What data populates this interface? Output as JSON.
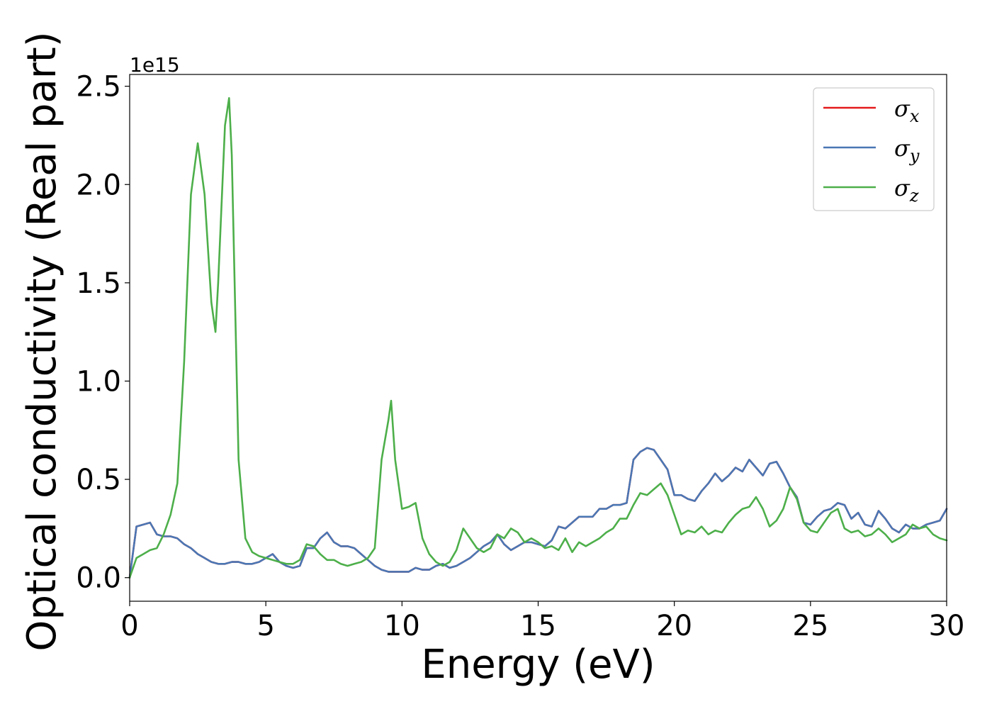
{
  "chart_data": {
    "type": "line",
    "xlabel": "Energy (eV)",
    "ylabel": "Optical conductivity (Real part)",
    "y_offset_label": "1e15",
    "xlim": [
      0,
      30
    ],
    "ylim": [
      -0.12,
      2.56
    ],
    "x_ticks": [
      0,
      5,
      10,
      15,
      20,
      25,
      30
    ],
    "x_tick_labels": [
      "0",
      "5",
      "10",
      "15",
      "20",
      "25",
      "30"
    ],
    "y_ticks": [
      0.0,
      0.5,
      1.0,
      1.5,
      2.0,
      2.5
    ],
    "y_tick_labels": [
      "0.0",
      "0.5",
      "1.0",
      "1.5",
      "2.0",
      "2.5"
    ],
    "grid": false,
    "legend_position": "upper-right",
    "series": [
      {
        "name": "σx",
        "legend_main": "σ",
        "legend_sub": "x",
        "color": "#e41a1c",
        "x": [
          0.0,
          0.25,
          0.5,
          0.75,
          1.0,
          1.25,
          1.5,
          1.75,
          2.0,
          2.25,
          2.5,
          2.75,
          3.0,
          3.25,
          3.5,
          3.75,
          4.0,
          4.25,
          4.5,
          4.75,
          5.0,
          5.25,
          5.5,
          5.75,
          6.0,
          6.25,
          6.5,
          6.75,
          7.0,
          7.25,
          7.5,
          7.75,
          8.0,
          8.25,
          8.5,
          8.75,
          9.0,
          9.25,
          9.5,
          9.75,
          10.0,
          10.25,
          10.5,
          10.75,
          11.0,
          11.25,
          11.5,
          11.75,
          12.0,
          12.25,
          12.5,
          12.75,
          13.0,
          13.25,
          13.5,
          13.75,
          14.0,
          14.25,
          14.5,
          14.75,
          15.0,
          15.25,
          15.5,
          15.75,
          16.0,
          16.25,
          16.5,
          16.75,
          17.0,
          17.25,
          17.5,
          17.75,
          18.0,
          18.25,
          18.5,
          18.75,
          19.0,
          19.25,
          19.5,
          19.75,
          20.0,
          20.25,
          20.5,
          20.75,
          21.0,
          21.25,
          21.5,
          21.75,
          22.0,
          22.25,
          22.5,
          22.75,
          23.0,
          23.25,
          23.5,
          23.75,
          24.0,
          24.25,
          24.5,
          24.75,
          25.0,
          25.25,
          25.5,
          25.75,
          26.0,
          26.25,
          26.5,
          26.75,
          27.0,
          27.25,
          27.5,
          27.75,
          28.0,
          28.25,
          28.5,
          28.75,
          29.0,
          29.25,
          29.5,
          29.75,
          30.0
        ],
        "y": [
          0.0,
          0.26,
          0.27,
          0.28,
          0.22,
          0.21,
          0.21,
          0.2,
          0.17,
          0.15,
          0.12,
          0.1,
          0.08,
          0.07,
          0.07,
          0.08,
          0.08,
          0.07,
          0.07,
          0.08,
          0.1,
          0.12,
          0.08,
          0.06,
          0.05,
          0.06,
          0.15,
          0.15,
          0.2,
          0.23,
          0.18,
          0.16,
          0.16,
          0.15,
          0.12,
          0.09,
          0.06,
          0.04,
          0.03,
          0.03,
          0.03,
          0.03,
          0.05,
          0.04,
          0.04,
          0.06,
          0.07,
          0.05,
          0.06,
          0.08,
          0.1,
          0.13,
          0.16,
          0.18,
          0.22,
          0.17,
          0.14,
          0.16,
          0.18,
          0.18,
          0.17,
          0.16,
          0.19,
          0.26,
          0.25,
          0.28,
          0.31,
          0.31,
          0.31,
          0.35,
          0.35,
          0.37,
          0.37,
          0.38,
          0.6,
          0.64,
          0.66,
          0.65,
          0.6,
          0.55,
          0.42,
          0.42,
          0.4,
          0.39,
          0.44,
          0.48,
          0.53,
          0.49,
          0.52,
          0.56,
          0.54,
          0.6,
          0.56,
          0.52,
          0.58,
          0.59,
          0.53,
          0.46,
          0.41,
          0.28,
          0.27,
          0.31,
          0.34,
          0.35,
          0.38,
          0.37,
          0.3,
          0.33,
          0.27,
          0.26,
          0.34,
          0.3,
          0.25,
          0.23,
          0.27,
          0.25,
          0.25,
          0.27,
          0.28,
          0.29,
          0.35
        ]
      },
      {
        "name": "σy",
        "legend_main": "σ",
        "legend_sub": "y",
        "color": "#4a77b4",
        "x": [
          0.0,
          0.25,
          0.5,
          0.75,
          1.0,
          1.25,
          1.5,
          1.75,
          2.0,
          2.25,
          2.5,
          2.75,
          3.0,
          3.25,
          3.5,
          3.75,
          4.0,
          4.25,
          4.5,
          4.75,
          5.0,
          5.25,
          5.5,
          5.75,
          6.0,
          6.25,
          6.5,
          6.75,
          7.0,
          7.25,
          7.5,
          7.75,
          8.0,
          8.25,
          8.5,
          8.75,
          9.0,
          9.25,
          9.5,
          9.75,
          10.0,
          10.25,
          10.5,
          10.75,
          11.0,
          11.25,
          11.5,
          11.75,
          12.0,
          12.25,
          12.5,
          12.75,
          13.0,
          13.25,
          13.5,
          13.75,
          14.0,
          14.25,
          14.5,
          14.75,
          15.0,
          15.25,
          15.5,
          15.75,
          16.0,
          16.25,
          16.5,
          16.75,
          17.0,
          17.25,
          17.5,
          17.75,
          18.0,
          18.25,
          18.5,
          18.75,
          19.0,
          19.25,
          19.5,
          19.75,
          20.0,
          20.25,
          20.5,
          20.75,
          21.0,
          21.25,
          21.5,
          21.75,
          22.0,
          22.25,
          22.5,
          22.75,
          23.0,
          23.25,
          23.5,
          23.75,
          24.0,
          24.25,
          24.5,
          24.75,
          25.0,
          25.25,
          25.5,
          25.75,
          26.0,
          26.25,
          26.5,
          26.75,
          27.0,
          27.25,
          27.5,
          27.75,
          28.0,
          28.25,
          28.5,
          28.75,
          29.0,
          29.25,
          29.5,
          29.75,
          30.0
        ],
        "y": [
          0.0,
          0.26,
          0.27,
          0.28,
          0.22,
          0.21,
          0.21,
          0.2,
          0.17,
          0.15,
          0.12,
          0.1,
          0.08,
          0.07,
          0.07,
          0.08,
          0.08,
          0.07,
          0.07,
          0.08,
          0.1,
          0.12,
          0.08,
          0.06,
          0.05,
          0.06,
          0.15,
          0.15,
          0.2,
          0.23,
          0.18,
          0.16,
          0.16,
          0.15,
          0.12,
          0.09,
          0.06,
          0.04,
          0.03,
          0.03,
          0.03,
          0.03,
          0.05,
          0.04,
          0.04,
          0.06,
          0.07,
          0.05,
          0.06,
          0.08,
          0.1,
          0.13,
          0.16,
          0.18,
          0.22,
          0.17,
          0.14,
          0.16,
          0.18,
          0.18,
          0.17,
          0.16,
          0.19,
          0.26,
          0.25,
          0.28,
          0.31,
          0.31,
          0.31,
          0.35,
          0.35,
          0.37,
          0.37,
          0.38,
          0.6,
          0.64,
          0.66,
          0.65,
          0.6,
          0.55,
          0.42,
          0.42,
          0.4,
          0.39,
          0.44,
          0.48,
          0.53,
          0.49,
          0.52,
          0.56,
          0.54,
          0.6,
          0.56,
          0.52,
          0.58,
          0.59,
          0.53,
          0.46,
          0.41,
          0.28,
          0.27,
          0.31,
          0.34,
          0.35,
          0.38,
          0.37,
          0.3,
          0.33,
          0.27,
          0.26,
          0.34,
          0.3,
          0.25,
          0.23,
          0.27,
          0.25,
          0.25,
          0.27,
          0.28,
          0.29,
          0.35
        ]
      },
      {
        "name": "σz",
        "legend_main": "σ",
        "legend_sub": "z",
        "color": "#4daf4a",
        "x": [
          0.0,
          0.25,
          0.5,
          0.75,
          1.0,
          1.25,
          1.5,
          1.75,
          2.0,
          2.25,
          2.5,
          2.75,
          3.0,
          3.15,
          3.25,
          3.5,
          3.65,
          3.75,
          4.0,
          4.25,
          4.5,
          4.75,
          5.0,
          5.25,
          5.5,
          5.75,
          6.0,
          6.25,
          6.5,
          6.75,
          7.0,
          7.25,
          7.5,
          7.75,
          8.0,
          8.25,
          8.5,
          8.75,
          9.0,
          9.25,
          9.5,
          9.6,
          9.75,
          10.0,
          10.25,
          10.5,
          10.75,
          11.0,
          11.25,
          11.5,
          11.75,
          12.0,
          12.25,
          12.5,
          12.75,
          13.0,
          13.25,
          13.5,
          13.75,
          14.0,
          14.25,
          14.5,
          14.75,
          15.0,
          15.25,
          15.5,
          15.75,
          16.0,
          16.25,
          16.5,
          16.75,
          17.0,
          17.25,
          17.5,
          17.75,
          18.0,
          18.25,
          18.5,
          18.75,
          19.0,
          19.25,
          19.5,
          19.75,
          20.0,
          20.25,
          20.5,
          20.75,
          21.0,
          21.25,
          21.5,
          21.75,
          22.0,
          22.25,
          22.5,
          22.75,
          23.0,
          23.25,
          23.5,
          23.75,
          24.0,
          24.25,
          24.5,
          24.75,
          25.0,
          25.25,
          25.5,
          25.75,
          26.0,
          26.25,
          26.5,
          26.75,
          27.0,
          27.25,
          27.5,
          27.75,
          28.0,
          28.25,
          28.5,
          28.75,
          29.0,
          29.25,
          29.5,
          29.75,
          30.0
        ],
        "y": [
          0.0,
          0.1,
          0.12,
          0.14,
          0.15,
          0.22,
          0.32,
          0.48,
          1.1,
          1.95,
          2.21,
          1.95,
          1.4,
          1.25,
          1.5,
          2.3,
          2.44,
          2.15,
          0.6,
          0.2,
          0.13,
          0.11,
          0.1,
          0.09,
          0.08,
          0.07,
          0.07,
          0.09,
          0.17,
          0.16,
          0.12,
          0.09,
          0.09,
          0.07,
          0.06,
          0.07,
          0.08,
          0.1,
          0.15,
          0.6,
          0.8,
          0.9,
          0.6,
          0.35,
          0.36,
          0.38,
          0.2,
          0.12,
          0.08,
          0.06,
          0.08,
          0.14,
          0.25,
          0.2,
          0.15,
          0.13,
          0.15,
          0.22,
          0.2,
          0.25,
          0.23,
          0.18,
          0.2,
          0.18,
          0.15,
          0.16,
          0.14,
          0.2,
          0.13,
          0.18,
          0.16,
          0.18,
          0.2,
          0.23,
          0.25,
          0.3,
          0.3,
          0.37,
          0.43,
          0.42,
          0.45,
          0.48,
          0.42,
          0.32,
          0.22,
          0.24,
          0.23,
          0.26,
          0.22,
          0.24,
          0.23,
          0.28,
          0.32,
          0.35,
          0.36,
          0.41,
          0.35,
          0.26,
          0.29,
          0.35,
          0.46,
          0.4,
          0.28,
          0.24,
          0.23,
          0.28,
          0.33,
          0.35,
          0.25,
          0.23,
          0.24,
          0.21,
          0.22,
          0.25,
          0.22,
          0.18,
          0.2,
          0.22,
          0.27,
          0.25,
          0.26,
          0.22,
          0.2,
          0.19
        ]
      }
    ]
  }
}
